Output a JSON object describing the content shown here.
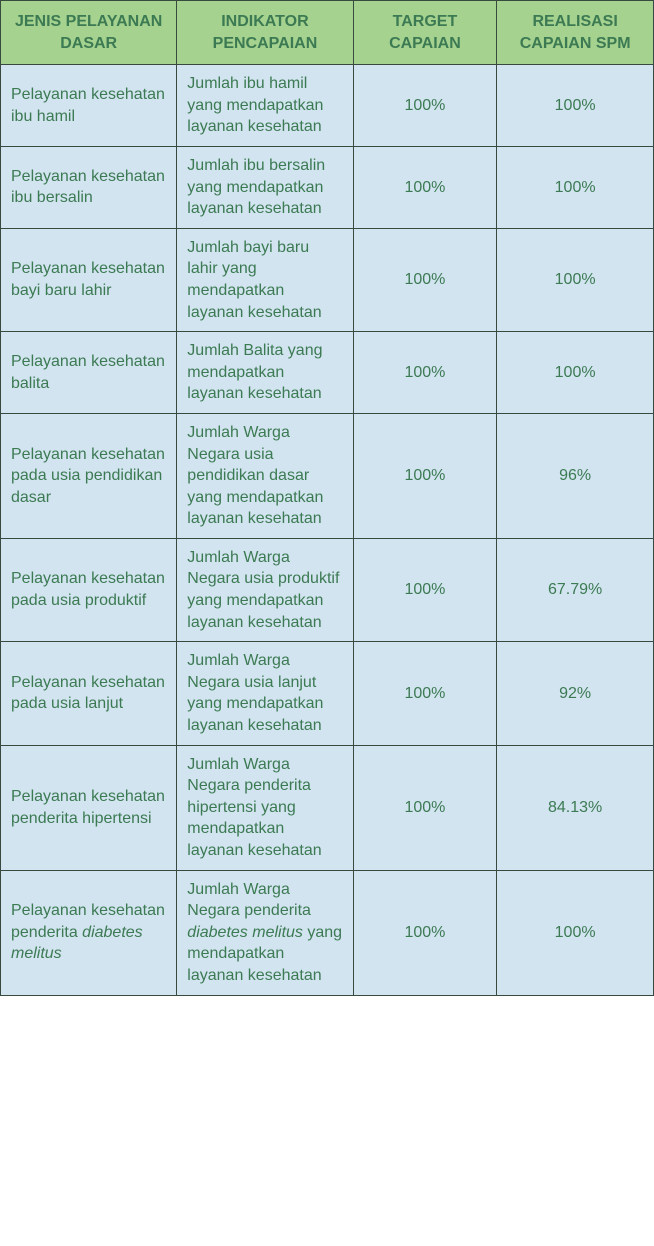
{
  "table": {
    "header_bg": "#a5d28e",
    "cell_bg": "#d1e4ef",
    "border_color": "#384a3f",
    "text_color": "#3c7a53",
    "font_size": 16,
    "columns": [
      {
        "label": "JENIS PELAYANAN DASAR",
        "width_pct": 27,
        "align": "left"
      },
      {
        "label": "INDIKATOR PENCAPAIAN",
        "width_pct": 27,
        "align": "left"
      },
      {
        "label": "TARGET CAPAIAN",
        "width_pct": 22,
        "align": "center"
      },
      {
        "label": "REALISASI CAPAIAN SPM",
        "width_pct": 24,
        "align": "center"
      }
    ],
    "rows": [
      {
        "jenis": "Pelayanan kesehatan ibu hamil",
        "indikator": "Jumlah ibu hamil yang mendapatkan layanan kesehatan",
        "target": "100%",
        "realisasi": "100%"
      },
      {
        "jenis": "Pelayanan kesehatan ibu bersalin",
        "indikator": "Jumlah ibu bersalin yang mendapatkan layanan kesehatan",
        "target": "100%",
        "realisasi": "100%"
      },
      {
        "jenis": "Pelayanan kesehatan bayi baru lahir",
        "indikator": "Jumlah bayi baru lahir yang mendapatkan layanan kesehatan",
        "target": "100%",
        "realisasi": "100%"
      },
      {
        "jenis": "Pelayanan kesehatan balita",
        "indikator": "Jumlah Balita yang mendapatkan layanan kesehatan",
        "target": "100%",
        "realisasi": "100%"
      },
      {
        "jenis": "Pelayanan kesehatan pada usia pendidikan dasar",
        "indikator": "Jumlah Warga Negara usia pendidikan dasar yang mendapatkan layanan kesehatan",
        "target": "100%",
        "realisasi": "96%"
      },
      {
        "jenis": "Pelayanan kesehatan pada usia produktif",
        "indikator": "Jumlah Warga Negara usia produktif yang mendapatkan layanan kesehatan",
        "target": "100%",
        "realisasi": "67.79%"
      },
      {
        "jenis": "Pelayanan kesehatan pada usia lanjut",
        "indikator": "Jumlah Warga Negara usia lanjut yang mendapatkan layanan kesehatan",
        "target": "100%",
        "realisasi": "92%"
      },
      {
        "jenis": "Pelayanan kesehatan penderita hipertensi",
        "indikator": "Jumlah Warga Negara penderita hipertensi yang mendapatkan layanan kesehatan",
        "target": "100%",
        "realisasi": "84.13%"
      },
      {
        "jenis_html": "Pelayanan kesehatan penderita <span class=\"italic\">diabetes melitus</span>",
        "indikator_html": "Jumlah Warga Negara penderita <span class=\"italic\">diabetes melitus</span> yang mendapatkan layanan kesehatan",
        "target": "100%",
        "realisasi": "100%"
      }
    ]
  }
}
